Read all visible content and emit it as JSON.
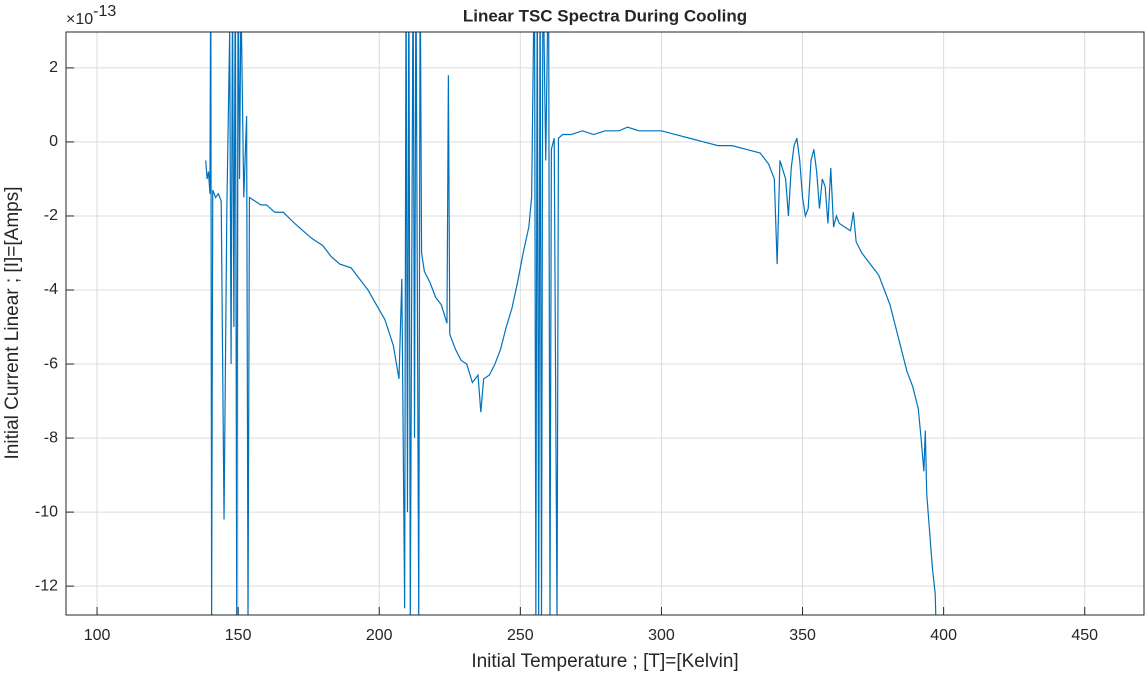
{
  "chart_data": {
    "type": "line",
    "title": "Linear TSC Spectra During Cooling",
    "x_label": "Initial Temperature ; [T]=[Kelvin]",
    "y_label": "Initial Current Linear ; [I]=[Amps]",
    "y_multiplier_base": "×10",
    "y_multiplier_exponent": "-13",
    "color": "#0072bd",
    "grid": true,
    "xlim": [
      89,
      471
    ],
    "ylim": [
      -12.78,
      2.97
    ],
    "xticks": [
      100,
      150,
      200,
      250,
      300,
      350,
      400,
      450
    ],
    "yticks": [
      -12,
      -10,
      -8,
      -6,
      -4,
      -2,
      0,
      2
    ],
    "x": [
      138.5,
      139,
      139.5,
      140,
      140.3,
      140.6,
      141,
      142,
      143,
      144,
      145,
      146,
      147,
      147.5,
      148,
      148.5,
      149,
      149.5,
      150,
      150.5,
      151,
      152,
      153,
      153.5,
      154,
      156,
      158,
      160,
      163,
      166,
      170,
      173,
      176,
      180,
      183,
      186,
      190,
      193,
      196,
      199,
      202,
      205,
      207,
      208,
      209,
      209.5,
      210,
      210.5,
      211,
      212,
      212.5,
      213,
      214,
      214.5,
      215,
      216,
      218,
      220,
      222,
      224,
      224.5,
      225,
      227,
      229,
      231,
      233,
      235,
      236,
      237,
      239,
      241,
      243,
      245,
      247,
      249,
      251,
      253,
      254,
      255,
      255.5,
      256,
      256.5,
      257,
      257.5,
      258,
      259,
      260,
      260.5,
      261,
      262,
      263,
      263.5,
      265,
      268,
      272,
      276,
      280,
      285,
      288,
      292,
      296,
      300,
      305,
      310,
      315,
      320,
      325,
      330,
      335,
      338,
      340,
      341,
      342,
      344,
      345,
      346,
      347,
      348,
      349,
      350,
      351,
      352,
      353,
      354,
      355,
      356,
      357,
      358,
      359,
      360,
      361,
      362,
      363,
      365,
      367,
      368,
      369,
      371,
      373,
      375,
      377,
      379,
      381,
      383,
      385,
      387,
      389,
      391,
      392,
      393,
      393.5,
      394,
      395,
      396,
      397,
      397.3
    ],
    "values": [
      -0.5,
      -1.0,
      -0.8,
      -1.4,
      5,
      -13,
      -1.3,
      -1.5,
      -1.4,
      -1.6,
      -10.2,
      -1.8,
      3,
      -6,
      4,
      -5,
      5,
      -13,
      5,
      -1.0,
      4,
      -1.5,
      0.7,
      -13,
      -1.5,
      -1.6,
      -1.7,
      -1.7,
      -1.9,
      -1.9,
      -2.2,
      -2.4,
      -2.6,
      -2.8,
      -3.1,
      -3.3,
      -3.4,
      -3.7,
      -4.0,
      -4.4,
      -4.8,
      -5.5,
      -6.4,
      -3.7,
      -12.6,
      5,
      -10,
      5,
      -13,
      5,
      -8,
      5,
      -13,
      5,
      -3.0,
      -3.5,
      -3.8,
      -4.2,
      -4.4,
      -4.9,
      1.8,
      -5.2,
      -5.6,
      -5.9,
      -6.0,
      -6.5,
      -6.3,
      -7.3,
      -6.4,
      -6.3,
      -6.0,
      -5.6,
      -5.0,
      -4.5,
      -3.8,
      -3.0,
      -2.3,
      -1.5,
      5,
      -13,
      5,
      -13,
      5,
      -13,
      5,
      -0.5,
      5,
      -13,
      -0.2,
      0.1,
      -13,
      0.1,
      0.2,
      0.2,
      0.3,
      0.2,
      0.3,
      0.3,
      0.4,
      0.3,
      0.3,
      0.3,
      0.2,
      0.1,
      0.0,
      -0.1,
      -0.1,
      -0.2,
      -0.3,
      -0.6,
      -1.0,
      -3.3,
      -0.5,
      -1.0,
      -2.0,
      -0.7,
      -0.1,
      0.1,
      -0.5,
      -1.5,
      -2.0,
      -1.8,
      -0.5,
      -0.2,
      -0.8,
      -1.8,
      -1.0,
      -1.2,
      -2.2,
      -0.7,
      -2.3,
      -2.0,
      -2.2,
      -2.3,
      -2.4,
      -1.9,
      -2.7,
      -3.0,
      -3.2,
      -3.4,
      -3.6,
      -4.0,
      -4.4,
      -5.0,
      -5.6,
      -6.2,
      -6.6,
      -7.2,
      -8.0,
      -8.9,
      -7.8,
      -9.5,
      -10.5,
      -11.5,
      -12.2,
      -13
    ]
  }
}
